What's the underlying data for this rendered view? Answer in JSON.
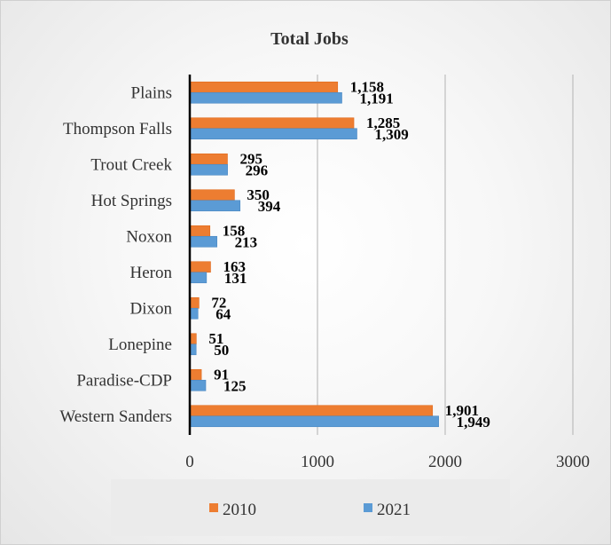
{
  "chart_data": {
    "type": "bar",
    "orientation": "horizontal",
    "title": "Total Jobs",
    "categories": [
      "Plains",
      "Thompson Falls",
      "Trout Creek",
      "Hot Springs",
      "Noxon",
      "Heron",
      "Dixon",
      "Lonepine",
      "Paradise-CDP",
      "Western Sanders"
    ],
    "series": [
      {
        "name": "2010",
        "color": "#ED7D31",
        "values": [
          1158,
          1285,
          295,
          350,
          158,
          163,
          72,
          51,
          91,
          1901
        ],
        "labels": [
          "1,158",
          "1,285",
          "295",
          "350",
          "158",
          "163",
          "72",
          "51",
          "91",
          "1,901"
        ]
      },
      {
        "name": "2021",
        "color": "#5B9BD5",
        "values": [
          1191,
          1309,
          296,
          394,
          213,
          131,
          64,
          50,
          125,
          1949
        ],
        "labels": [
          "1,191",
          "1,309",
          "296",
          "394",
          "213",
          "131",
          "64",
          "50",
          "125",
          "1,949"
        ]
      }
    ],
    "xlim": [
      0,
      3000
    ],
    "xticks": [
      "0",
      "1000",
      "2000",
      "3000"
    ],
    "grid": "vertical",
    "legend_position": "bottom"
  }
}
